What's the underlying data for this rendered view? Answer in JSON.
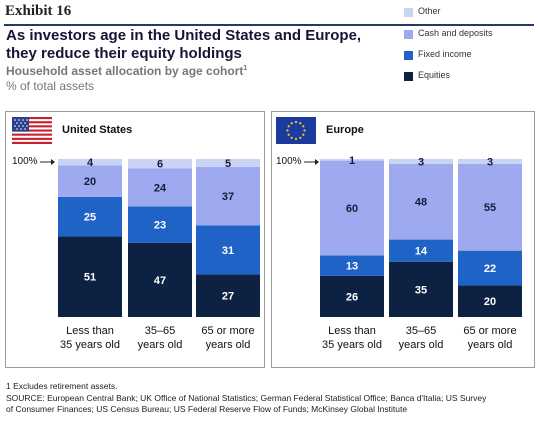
{
  "header": {
    "exhibit": "Exhibit 16",
    "title_line1": "As investors age in the United States and Europe,",
    "title_line2": "they reduce their equity holdings",
    "subtitle": "Household asset allocation by age cohort",
    "subtitle_sup": "1",
    "unit": "% of total assets"
  },
  "legend": [
    {
      "name": "Other",
      "color": "#c9d4f5"
    },
    {
      "name": "Cash and deposits",
      "color": "#9ea9f0"
    },
    {
      "name": "Fixed income",
      "color": "#1f63c6"
    },
    {
      "name": "Equities",
      "color": "#0d2243"
    }
  ],
  "hundred_label": "100%",
  "chart_data": [
    {
      "type": "bar",
      "stacked": true,
      "title": "United States",
      "categories": [
        [
          "Less than",
          "35 years old"
        ],
        [
          "35–65",
          "years old"
        ],
        [
          "65 or more",
          "years old"
        ]
      ],
      "series": [
        {
          "name": "Equities",
          "values": [
            51,
            47,
            27
          ]
        },
        {
          "name": "Fixed income",
          "values": [
            25,
            23,
            31
          ]
        },
        {
          "name": "Cash and deposits",
          "values": [
            20,
            24,
            37
          ]
        },
        {
          "name": "Other",
          "values": [
            4,
            6,
            5
          ]
        }
      ],
      "ylim": [
        0,
        100
      ]
    },
    {
      "type": "bar",
      "stacked": true,
      "title": "Europe",
      "categories": [
        [
          "Less than",
          "35 years old"
        ],
        [
          "35–65",
          "years old"
        ],
        [
          "65 or more",
          "years old"
        ]
      ],
      "series": [
        {
          "name": "Equities",
          "values": [
            26,
            35,
            20
          ]
        },
        {
          "name": "Fixed income",
          "values": [
            13,
            14,
            22
          ]
        },
        {
          "name": "Cash and deposits",
          "values": [
            60,
            48,
            55
          ]
        },
        {
          "name": "Other",
          "values": [
            1,
            3,
            3
          ]
        }
      ],
      "ylim": [
        0,
        100
      ]
    }
  ],
  "footnote": "1 Excludes retirement assets.",
  "source_line1": "SOURCE: European Central Bank; UK Office of National Statistics; German Federal Statistical Office; Banca d'Italia; US Survey",
  "source_line2": "of Consumer Finances; US Census Bureau; US Federal Reserve Flow of Funds; McKinsey Global Institute"
}
